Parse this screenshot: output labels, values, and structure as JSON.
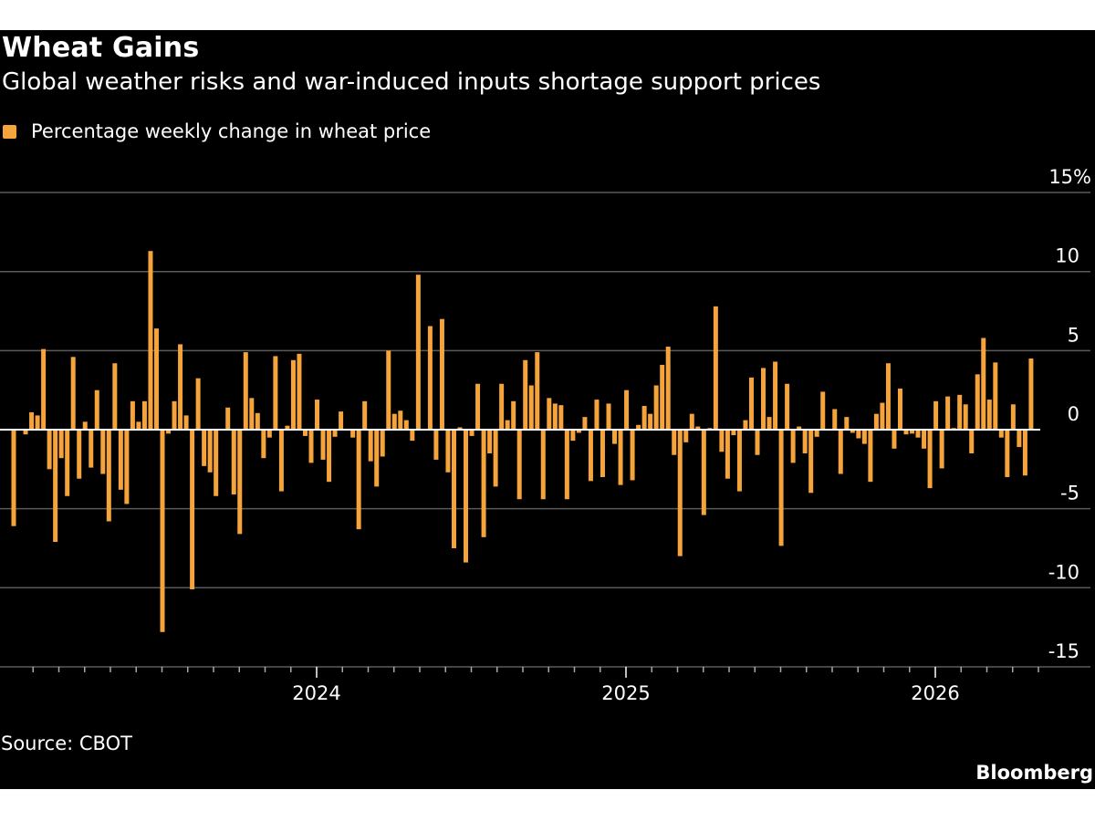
{
  "title": "Wheat Gains",
  "subtitle": "Global weather risks and war-induced inputs shortage support prices",
  "source": "Source: CBOT",
  "brand": "Bloomberg",
  "colors": {
    "bar": "#f5a33b",
    "background": "#000000",
    "grid": "#5a5a5a",
    "zero_line": "#ffffff"
  },
  "chart_data": {
    "type": "bar",
    "legend": {
      "position": "top-left",
      "entries": [
        "Percentage weekly change in wheat price"
      ]
    },
    "series": [
      {
        "name": "Percentage weekly change in wheat price",
        "frequency": "weekly",
        "values": [
          -6.1,
          0,
          -0.3,
          1.1,
          0.9,
          5.1,
          -2.5,
          -7.1,
          -1.8,
          -4.2,
          4.6,
          -3.1,
          0.5,
          -2.4,
          2.5,
          -2.8,
          -5.8,
          4.2,
          -3.8,
          -4.7,
          1.8,
          0.5,
          1.8,
          11.3,
          6.4,
          -12.8,
          -0.25,
          1.8,
          5.4,
          0.9,
          -10.1,
          3.25,
          -2.3,
          -2.7,
          -4.2,
          0,
          1.4,
          -4.1,
          -6.6,
          4.9,
          2.0,
          1.05,
          -1.8,
          -0.5,
          4.65,
          -3.9,
          0.25,
          4.4,
          4.8,
          -0.4,
          -2.1,
          1.9,
          -1.9,
          -3.3,
          -0.45,
          1.15,
          0,
          -0.5,
          -6.3,
          1.8,
          -2.0,
          -3.6,
          -1.7,
          5.0,
          1.0,
          1.2,
          0.6,
          -0.7,
          9.8,
          0,
          6.55,
          -1.9,
          7.0,
          -2.7,
          -7.5,
          0.15,
          -8.4,
          -0.4,
          2.9,
          -6.8,
          -1.5,
          -3.6,
          2.9,
          0.6,
          1.8,
          -4.4,
          4.4,
          2.8,
          4.9,
          -4.4,
          2.0,
          1.65,
          1.55,
          -4.4,
          -0.7,
          -0.2,
          0.8,
          -3.25,
          1.9,
          -3.0,
          1.65,
          -0.9,
          -3.5,
          2.5,
          -3.2,
          0.3,
          1.5,
          1.0,
          2.8,
          4.1,
          5.25,
          -1.6,
          -8.0,
          -0.8,
          1.0,
          0.2,
          -5.4,
          0.1,
          7.8,
          -1.4,
          -3.1,
          -0.35,
          -3.9,
          0.6,
          3.3,
          -1.6,
          3.9,
          0.8,
          4.3,
          -7.35,
          2.9,
          -2.1,
          0.2,
          -1.5,
          -4.0,
          -0.45,
          2.4,
          0,
          1.3,
          -2.8,
          0.8,
          -0.2,
          -0.55,
          -0.9,
          -3.3,
          1.0,
          1.7,
          4.2,
          -1.2,
          2.6,
          -0.3,
          -0.25,
          -0.5,
          -1.2,
          -3.7,
          1.8,
          -2.45,
          2.1,
          0.1,
          2.2,
          1.6,
          -1.5,
          3.5,
          5.8,
          1.9,
          4.25,
          -0.5,
          -3.0,
          1.6,
          -1.1,
          -2.9,
          4.5
        ]
      }
    ],
    "x_axis": {
      "type": "date",
      "tick_labels": [
        "2024",
        "2025",
        "2026"
      ],
      "minor_ticks": "monthly"
    },
    "y_axis": {
      "tick_labels": [
        "15%",
        "10",
        "5",
        "0",
        "-5",
        "-10",
        "-15"
      ],
      "ticks": [
        15,
        10,
        5,
        0,
        -5,
        -10,
        -15
      ],
      "ylim": [
        -15,
        15
      ],
      "position": "right"
    },
    "grid": true
  }
}
